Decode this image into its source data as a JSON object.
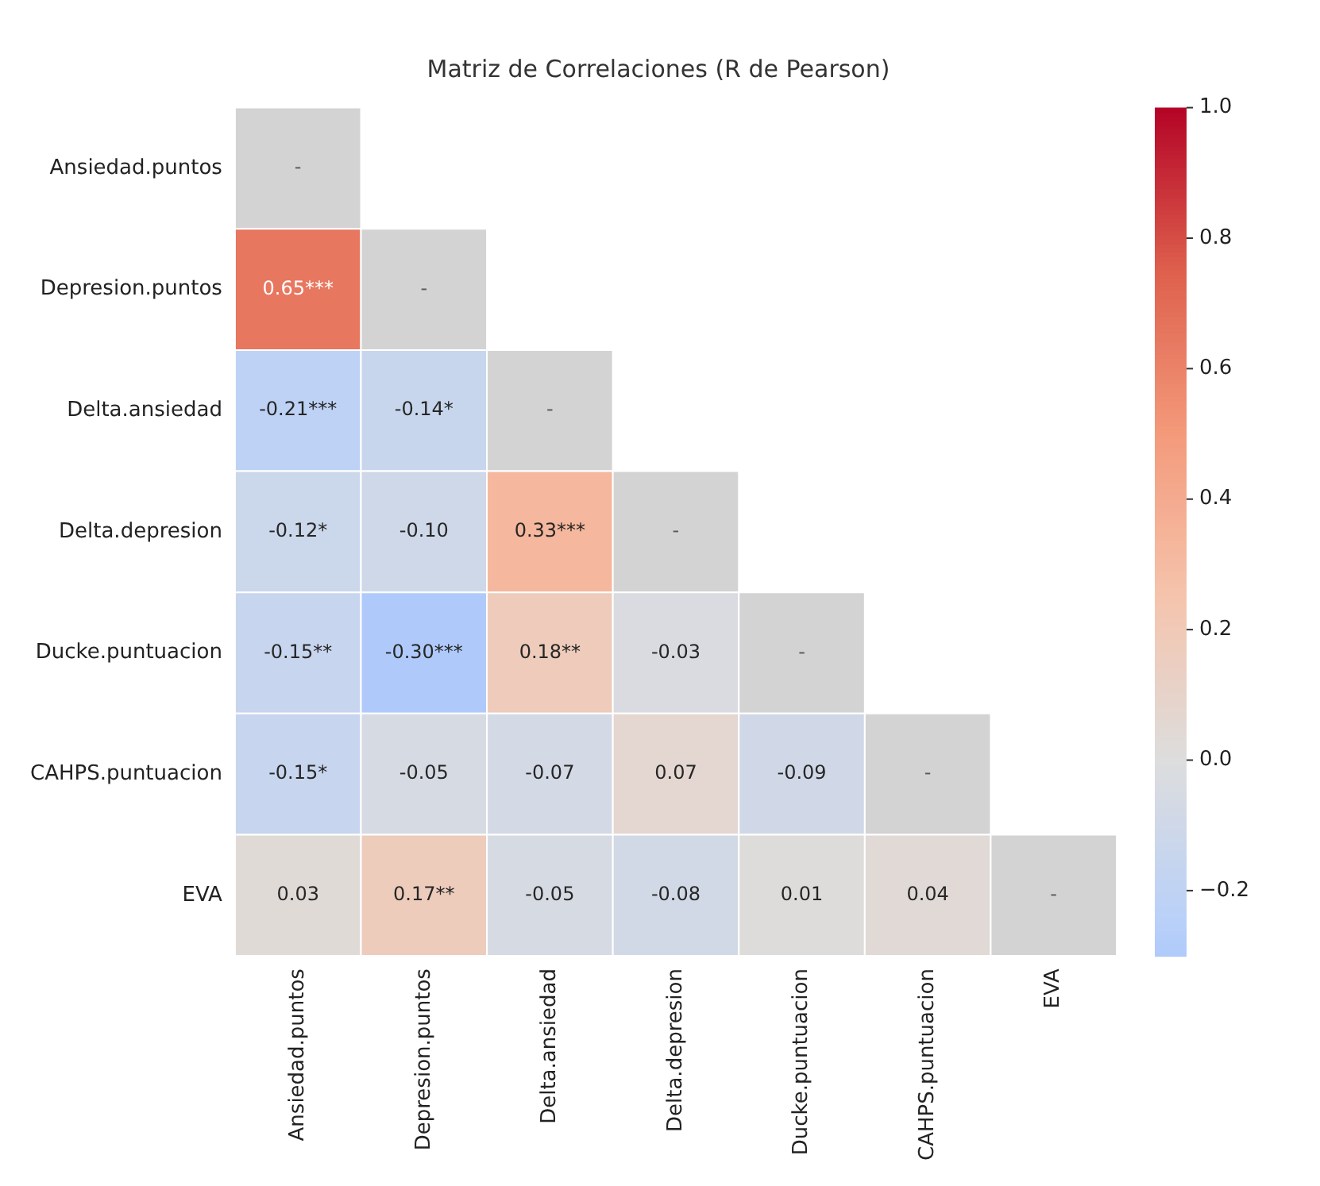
{
  "chart_data": {
    "type": "heatmap",
    "title": "Matriz de Correlaciones (R de Pearson)",
    "categories": [
      "Ansiedad.puntos",
      "Depresion.puntos",
      "Delta.ansiedad",
      "Delta.depresion",
      "Ducke.puntuacion",
      "CAHPS.puntuacion",
      "EVA"
    ],
    "y_categories": [
      "Ansiedad.puntos",
      "Depresion.puntos",
      "Delta.ansiedad",
      "Delta.depresion",
      "Ducke.puntuacion",
      "CAHPS.puntuacion",
      "EVA"
    ],
    "cells": [
      [
        null,
        null,
        null,
        null,
        null,
        null,
        null
      ],
      [
        0.65,
        null,
        null,
        null,
        null,
        null,
        null
      ],
      [
        -0.21,
        -0.14,
        null,
        null,
        null,
        null,
        null
      ],
      [
        -0.12,
        -0.1,
        0.33,
        null,
        null,
        null,
        null
      ],
      [
        -0.15,
        -0.3,
        0.18,
        -0.03,
        null,
        null,
        null
      ],
      [
        -0.15,
        -0.05,
        -0.07,
        0.07,
        -0.09,
        null,
        null
      ],
      [
        0.03,
        0.17,
        -0.05,
        -0.08,
        0.01,
        0.04,
        null
      ]
    ],
    "cell_labels": [
      [
        "-",
        null,
        null,
        null,
        null,
        null,
        null
      ],
      [
        "0.65***",
        "-",
        null,
        null,
        null,
        null,
        null
      ],
      [
        "-0.21***",
        "-0.14*",
        "-",
        null,
        null,
        null,
        null
      ],
      [
        "-0.12*",
        "-0.10",
        "0.33***",
        "-",
        null,
        null,
        null
      ],
      [
        "-0.15**",
        "-0.30***",
        "0.18**",
        "-0.03",
        "-",
        null,
        null
      ],
      [
        "-0.15*",
        "-0.05",
        "-0.07",
        "0.07",
        "-0.09",
        "-",
        null
      ],
      [
        "0.03",
        "0.17**",
        "-0.05",
        "-0.08",
        "0.01",
        "0.04",
        "-"
      ]
    ],
    "clim": [
      -0.3,
      1.0
    ],
    "cticks": [
      {
        "value": -0.2,
        "label": "−0.2"
      },
      {
        "value": 0,
        "label": "0.0"
      },
      0.2,
      0.4,
      0.6,
      0.8,
      {
        "value": 1,
        "label": "1.0"
      }
    ]
  }
}
